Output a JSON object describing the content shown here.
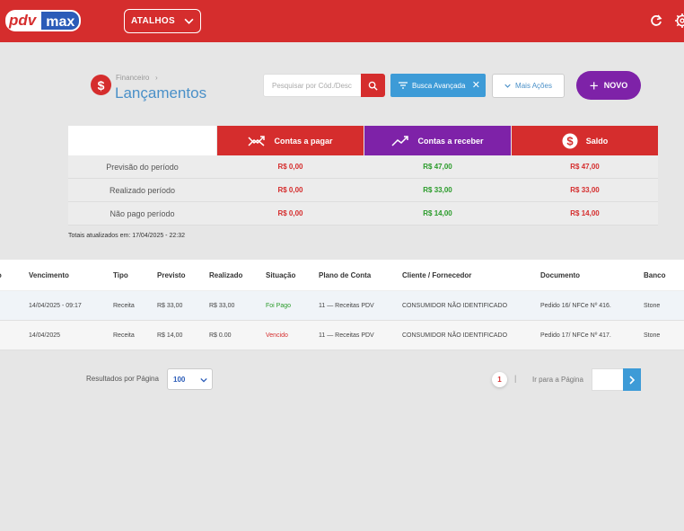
{
  "colors": {
    "brand_red": "#d52d2d",
    "purple": "#7e22a8",
    "blue": "#3d9bd7",
    "green": "#2a9b2a"
  },
  "header": {
    "logo_left": "pdv",
    "logo_right": "max",
    "shortcuts_label": "ATALHOS",
    "icons": [
      "refresh-icon",
      "settings-icon"
    ]
  },
  "page": {
    "breadcrumb": "Financeiro",
    "title": "Lançamentos",
    "icon_glyph": "$"
  },
  "toolbar": {
    "search_placeholder": "Pesquisar por Cód./Desc",
    "advanced_search_label": "Busca Avançada",
    "more_actions_label": "Mais Ações",
    "new_label": "NOVO"
  },
  "summary": {
    "headers": {
      "pagar": "Contas a pagar",
      "receber": "Contas a receber",
      "saldo": "Saldo"
    },
    "rows": [
      {
        "label": "Previsão do período",
        "pagar": "R$ 0,00",
        "receber": "R$ 47,00",
        "saldo": "R$ 47,00"
      },
      {
        "label": "Realizado período",
        "pagar": "R$ 0,00",
        "receber": "R$ 33,00",
        "saldo": "R$ 33,00"
      },
      {
        "label": "Não pago período",
        "pagar": "R$ 0,00",
        "receber": "R$ 14,00",
        "saldo": "R$ 14,00"
      }
    ],
    "updated_text": "Totais atualizados em: 17/04/2025 - 22:32"
  },
  "table": {
    "columns": [
      "go",
      "Vencimento",
      "Tipo",
      "Previsto",
      "Realizado",
      "Situação",
      "Plano de Conta",
      "Cliente / Fornecedor",
      "Documento",
      "Banco"
    ],
    "rows": [
      [
        "",
        "14/04/2025 - 09:17",
        "Receita",
        "R$ 33,00",
        "R$ 33,00",
        "Foi Pago",
        "11 — Receitas PDV",
        "CONSUMIDOR NÃO IDENTIFICADO",
        "Pedido 16/ NFCe Nº 416.",
        "Stone"
      ],
      [
        "",
        "14/04/2025",
        "Receita",
        "R$ 14,00",
        "R$ 0.00",
        "Vencido",
        "11 — Receitas PDV",
        "CONSUMIDOR NÃO IDENTIFICADO",
        "Pedido 17/ NFCe Nº 417.",
        "Stone"
      ]
    ]
  },
  "pagination": {
    "rows_per_page_label": "Resultados por Página",
    "rows_per_page_value": "100",
    "current_page": "1",
    "separator": "|",
    "goto_label": "Ir para a Página"
  }
}
